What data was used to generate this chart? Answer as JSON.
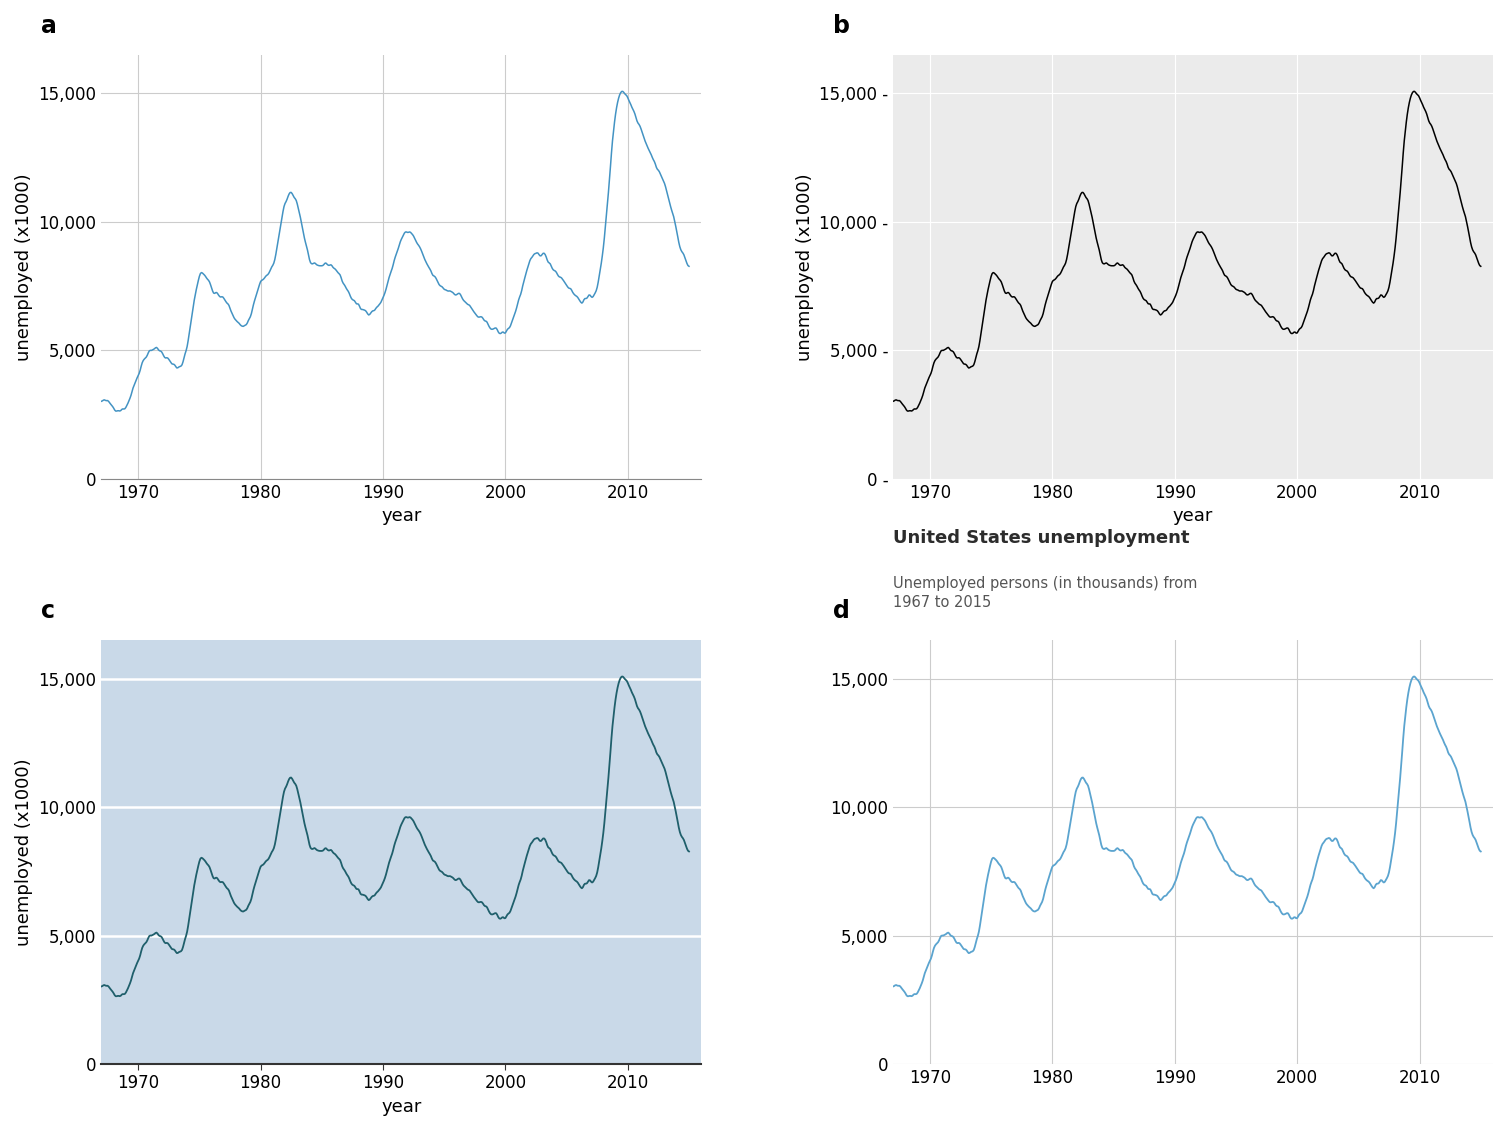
{
  "title_a": "a",
  "title_b": "b",
  "title_c": "c",
  "title_d": "d",
  "ylabel": "unemployed (x1000)",
  "xlabel": "year",
  "title_d_main": "United States unemployment",
  "title_d_sub": "Unemployed persons (in thousands) from\n1967 to 2015",
  "line_color_a": "#4393c3",
  "line_color_b": "#000000",
  "line_color_c": "#1f5f6b",
  "line_color_d": "#5ba4cf",
  "bg_color_a": "#FFFFFF",
  "bg_color_b": "#EBEBEB",
  "bg_color_c": "#C9D9E8",
  "bg_color_d": "#FFFFFF",
  "grid_color_a": "#CCCCCC",
  "grid_color_b": "#FFFFFF",
  "grid_color_c": "#FFFFFF",
  "grid_color_d": "#CCCCCC",
  "yticks": [
    0,
    5000,
    10000,
    15000
  ],
  "xticks": [
    1970,
    1980,
    1990,
    2000,
    2010
  ],
  "ylim": [
    0,
    16500
  ],
  "xlim_start": 1967,
  "xlim_end": 2016,
  "key_years": [
    1967,
    1968,
    1969,
    1970,
    1971,
    1972,
    1973,
    1974,
    1975,
    1976,
    1977,
    1978,
    1979,
    1980,
    1981,
    1982,
    1983,
    1984,
    1985,
    1986,
    1987,
    1988,
    1989,
    1990,
    1991,
    1992,
    1993,
    1994,
    1995,
    1996,
    1997,
    1998,
    1999,
    2000,
    2001,
    2002,
    2003,
    2004,
    2005,
    2006,
    2007,
    2008,
    2009,
    2010,
    2011,
    2012,
    2013,
    2014,
    2015
  ],
  "key_values": [
    2975,
    2817,
    2832,
    4093,
    5016,
    4882,
    4365,
    5156,
    7929,
    7406,
    6991,
    6202,
    6137,
    7637,
    8273,
    10678,
    10717,
    8539,
    8312,
    8237,
    7425,
    6701,
    6528,
    7047,
    8628,
    9613,
    8940,
    7996,
    7404,
    7236,
    6739,
    6210,
    5880,
    5692,
    6801,
    8378,
    8774,
    8149,
    7591,
    7001,
    7078,
    8924,
    14265,
    14825,
    13747,
    12506,
    11460,
    9617,
    8296
  ]
}
